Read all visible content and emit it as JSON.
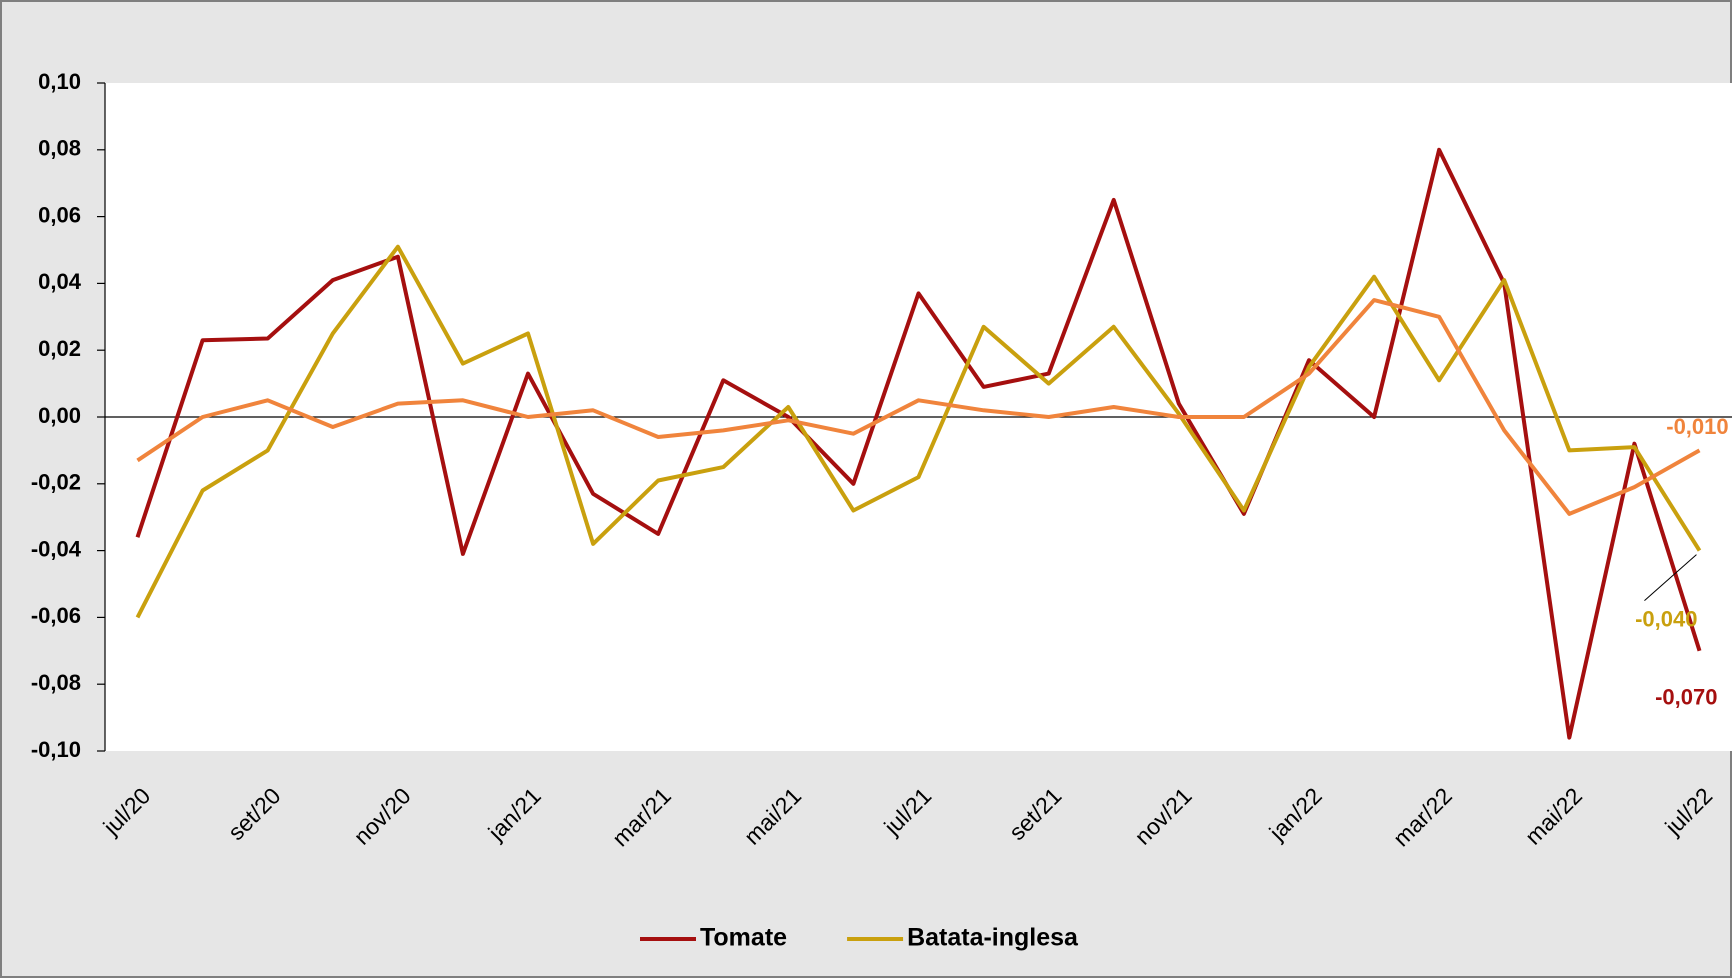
{
  "chart_data": {
    "type": "line",
    "categories": [
      "jul/20",
      null,
      "set/20",
      null,
      "nov/20",
      null,
      "jan/21",
      null,
      "mar/21",
      null,
      "mai/21",
      null,
      "jul/21",
      null,
      "set/21",
      null,
      "nov/21",
      null,
      "jan/22",
      null,
      "mar/22",
      null,
      "mai/22",
      null,
      "jul/22"
    ],
    "series": [
      {
        "name": "Tomate",
        "color": "#a50f0f",
        "values": [
          -0.036,
          0.023,
          0.0235,
          0.041,
          0.048,
          -0.041,
          0.013,
          -0.023,
          -0.035,
          0.011,
          0.0,
          -0.02,
          0.037,
          0.009,
          0.013,
          0.065,
          0.004,
          -0.029,
          0.017,
          0.0,
          0.08,
          0.04,
          -0.096,
          -0.008,
          -0.07
        ],
        "value_labels": [
          null,
          null,
          null,
          null,
          null,
          null,
          null,
          null,
          null,
          null,
          null,
          null,
          null,
          null,
          null,
          null,
          null,
          null,
          null,
          null,
          null,
          null,
          null,
          null,
          "-0,070"
        ]
      },
      {
        "name": "Batata-inglesa",
        "color": "#c9a00e",
        "values": [
          -0.06,
          -0.022,
          -0.01,
          0.025,
          0.051,
          0.016,
          0.025,
          -0.038,
          -0.019,
          -0.015,
          0.003,
          -0.028,
          -0.018,
          0.027,
          0.01,
          0.027,
          0.001,
          -0.028,
          0.015,
          0.042,
          0.011,
          0.041,
          -0.01,
          -0.009,
          -0.04
        ],
        "value_labels": [
          null,
          null,
          null,
          null,
          null,
          null,
          null,
          null,
          null,
          null,
          null,
          null,
          null,
          null,
          null,
          null,
          null,
          null,
          null,
          null,
          null,
          null,
          null,
          null,
          "-0,040"
        ]
      },
      {
        "color": "#f0843c",
        "values": [
          -0.013,
          0.0,
          0.005,
          -0.003,
          0.004,
          0.005,
          0.0,
          0.002,
          -0.006,
          -0.004,
          -0.001,
          -0.005,
          0.005,
          0.002,
          0.0,
          0.003,
          0.0,
          0.0,
          0.013,
          0.035,
          0.03,
          -0.004,
          -0.029,
          -0.021,
          -0.01
        ],
        "value_labels": [
          null,
          null,
          null,
          null,
          null,
          null,
          null,
          null,
          null,
          null,
          null,
          null,
          null,
          null,
          null,
          null,
          null,
          null,
          null,
          null,
          null,
          null,
          null,
          null,
          "-0,010"
        ]
      }
    ],
    "ylim": [
      -0.1,
      0.1
    ],
    "yticks": [
      {
        "value": -0.1,
        "label": "-0,10"
      },
      {
        "value": -0.08,
        "label": "-0,08"
      },
      {
        "value": -0.06,
        "label": "-0,06"
      },
      {
        "value": -0.04,
        "label": "-0,04"
      },
      {
        "value": -0.02,
        "label": "-0,02"
      },
      {
        "value": 0,
        "label": "0,00"
      },
      {
        "value": 0.02,
        "label": "0,02"
      },
      {
        "value": 0.04,
        "label": "0,04"
      },
      {
        "value": 0.06,
        "label": "0,06"
      },
      {
        "value": 0.08,
        "label": "0,08"
      },
      {
        "value": 0.1,
        "label": "0,10"
      }
    ],
    "grid": false,
    "legend": "bottom"
  }
}
